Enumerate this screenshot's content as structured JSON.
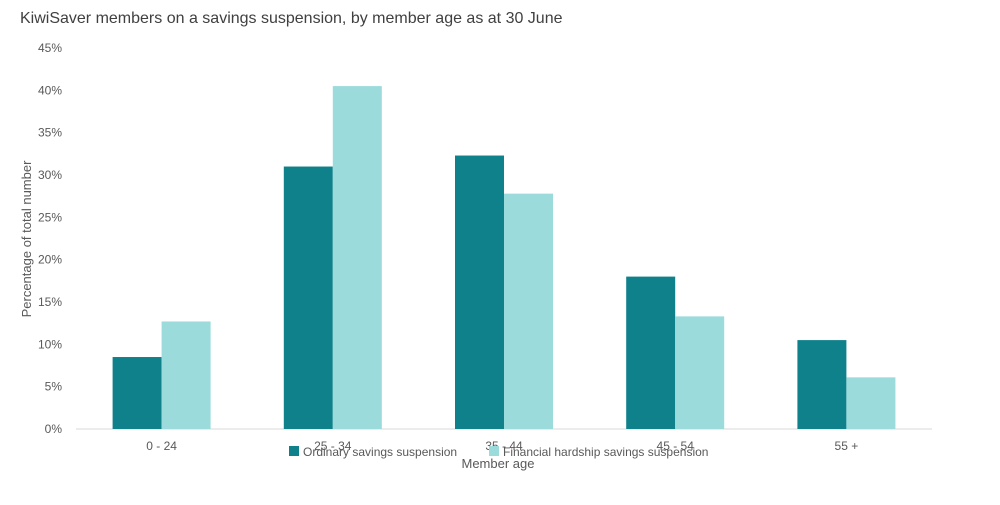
{
  "chart_data": {
    "type": "bar",
    "title": "KiwiSaver members on a savings suspension, by member age as at 30 June",
    "xlabel": "Member age",
    "ylabel": "Percentage of total number",
    "categories": [
      "0 - 24",
      "25 - 34",
      "35 - 44",
      "45 - 54",
      "55 +"
    ],
    "series": [
      {
        "name": "Ordinary savings suspension",
        "color": "#0e818b",
        "values": [
          8.5,
          31.0,
          32.3,
          18.0,
          10.5
        ]
      },
      {
        "name": "Financial hardship savings suspension",
        "color": "#9bdbdb",
        "values": [
          12.7,
          40.5,
          27.8,
          13.3,
          6.1
        ]
      }
    ],
    "ylim": [
      0,
      45
    ],
    "yticks": [
      "0%",
      "5%",
      "10%",
      "15%",
      "20%",
      "25%",
      "30%",
      "35%",
      "40%",
      "45%"
    ],
    "grid": false,
    "legend_position": "bottom"
  }
}
